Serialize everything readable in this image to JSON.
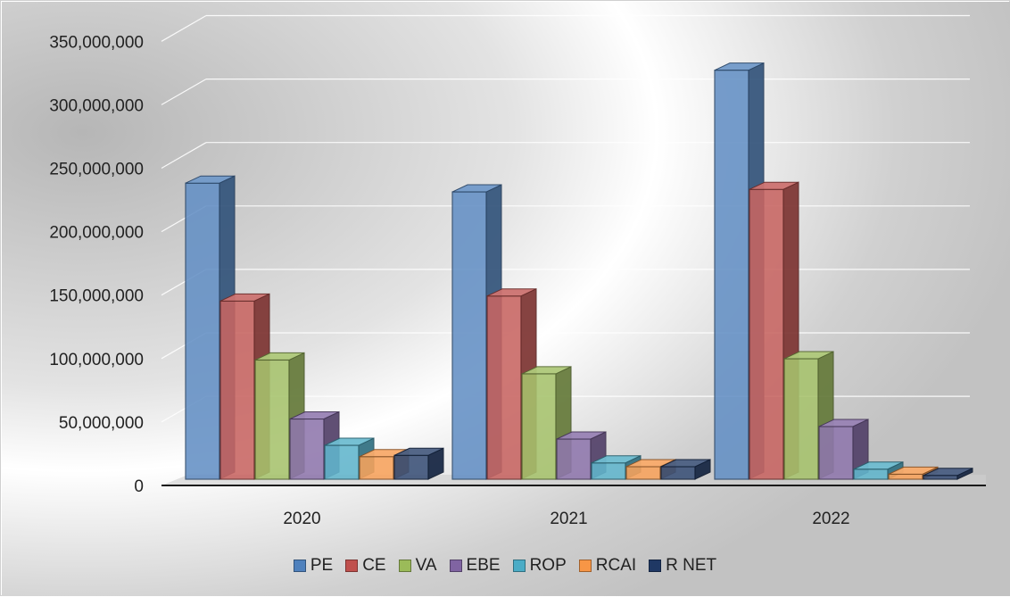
{
  "chart_data": {
    "type": "bar",
    "title": "",
    "xlabel": "",
    "ylabel": "",
    "categories": [
      "2020",
      "2021",
      "2022"
    ],
    "ylim": [
      0,
      350000000
    ],
    "yticks": [
      "0",
      "50,000,000",
      "100,000,000",
      "150,000,000",
      "200,000,000",
      "250,000,000",
      "300,000,000",
      "350,000,000"
    ],
    "grid": true,
    "legend_position": "bottom",
    "three_d": true,
    "series": [
      {
        "name": "PE",
        "color": "#4f81bd",
        "values": [
          236000000,
          229000000,
          326000000
        ]
      },
      {
        "name": "CE",
        "color": "#c0504d",
        "values": [
          142000000,
          146000000,
          231000000
        ]
      },
      {
        "name": "VA",
        "color": "#9bbb59",
        "values": [
          95000000,
          84000000,
          96000000
        ]
      },
      {
        "name": "EBE",
        "color": "#8064a2",
        "values": [
          48000000,
          32000000,
          42000000
        ]
      },
      {
        "name": "ROP",
        "color": "#4bacc6",
        "values": [
          27000000,
          13000000,
          8000000
        ]
      },
      {
        "name": "RCAI",
        "color": "#f79646",
        "values": [
          18000000,
          10000000,
          4000000
        ]
      },
      {
        "name": "R NET",
        "color": "#1f3864",
        "values": [
          19000000,
          10000000,
          3000000
        ]
      }
    ]
  }
}
